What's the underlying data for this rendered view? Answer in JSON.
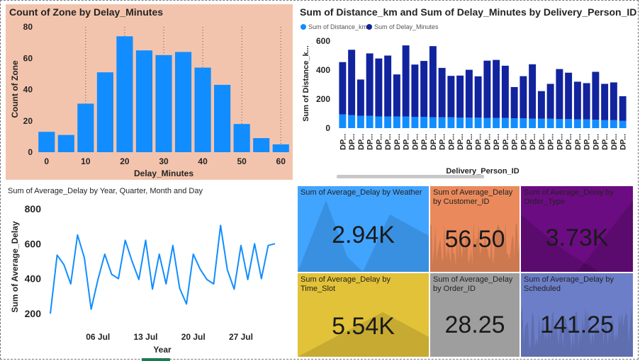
{
  "colors": {
    "hist_panel_bg": "#f3c4ad",
    "bar_blue": "#118dff",
    "dark_blue": "#12239e",
    "weather": "#41a4ff",
    "customer": "#ea8a5c",
    "order_type": "#6c0c82",
    "time_slot": "#e2c238",
    "order_id": "#9e9e9e",
    "scheduled": "#6c7ec8"
  },
  "hist": {
    "title": "Count of Zone by Delay_Minutes",
    "chart_data": {
      "type": "bar",
      "title": "Count of Zone by Delay_Minutes",
      "xlabel": "Delay_Minutes",
      "ylabel": "Count of Zone",
      "categories": [
        0,
        5,
        10,
        15,
        20,
        25,
        30,
        35,
        40,
        45,
        50,
        55,
        60
      ],
      "values": [
        13,
        11,
        31,
        51,
        74,
        65,
        62,
        64,
        54,
        43,
        18,
        9,
        5
      ],
      "ylim": [
        0,
        80
      ],
      "yticks": [
        0,
        20,
        40,
        60,
        80
      ],
      "xticks": [
        0,
        10,
        20,
        30,
        40,
        50,
        60
      ],
      "grid": "vertical dotted"
    }
  },
  "stacked": {
    "title": "Sum of Distance_km and Sum of Delay_Minutes by Delivery_Person_ID",
    "legend": [
      "Sum of Distance_km",
      "Sum of Delay_Minutes"
    ],
    "chart_data": {
      "type": "bar",
      "stacked": true,
      "title": "Sum of Distance_km and Sum of Delay_Minutes by Delivery_Person_ID",
      "xlabel": "Delivery_Person_ID",
      "ylabel": "Sum of Distance_k...",
      "category_label": "DP...",
      "ylim": [
        0,
        600
      ],
      "yticks": [
        0,
        200,
        400,
        600
      ],
      "legend": "top-left",
      "series": [
        {
          "name": "Sum of Distance_km",
          "values": [
            95,
            90,
            85,
            85,
            80,
            80,
            80,
            80,
            78,
            78,
            75,
            75,
            75,
            72,
            72,
            72,
            70,
            70,
            70,
            68,
            68,
            65,
            65,
            65,
            62,
            62,
            60,
            60,
            58,
            55,
            55,
            50
          ]
        },
        {
          "name": "Sum of Delay_Minutes",
          "values": [
            360,
            450,
            250,
            430,
            400,
            420,
            290,
            490,
            360,
            385,
            490,
            340,
            285,
            290,
            330,
            285,
            395,
            400,
            360,
            215,
            290,
            375,
            190,
            240,
            345,
            320,
            260,
            250,
            330,
            250,
            260,
            170
          ]
        }
      ]
    }
  },
  "line": {
    "title": "Sum of Average_Delay by Year, Quarter, Month and Day",
    "chart_data": {
      "type": "line",
      "title": "Sum of Average_Delay by Year, Quarter, Month and Day",
      "xlabel": "Year",
      "ylabel": "Sum of Average_Delay",
      "ylim": [
        180,
        820
      ],
      "yticks": [
        200,
        400,
        600,
        800
      ],
      "xtick_labels": [
        "06 Jul",
        "13 Jul",
        "20 Jul",
        "27 Jul"
      ],
      "x": [
        "2023-06-29",
        "2023-06-30",
        "2023-07-01",
        "2023-07-02",
        "2023-07-03",
        "2023-07-04",
        "2023-07-05",
        "2023-07-06",
        "2023-07-07",
        "2023-07-08",
        "2023-07-09",
        "2023-07-10",
        "2023-07-11",
        "2023-07-12",
        "2023-07-13",
        "2023-07-14",
        "2023-07-15",
        "2023-07-16",
        "2023-07-17",
        "2023-07-18",
        "2023-07-19",
        "2023-07-20",
        "2023-07-21",
        "2023-07-22",
        "2023-07-23",
        "2023-07-24",
        "2023-07-25",
        "2023-07-26",
        "2023-07-27",
        "2023-07-28",
        "2023-07-29",
        "2023-07-30",
        "2023-07-31",
        "2023-08-01"
      ],
      "values": [
        200,
        535,
        480,
        370,
        650,
        520,
        225,
        395,
        540,
        425,
        400,
        620,
        500,
        395,
        620,
        340,
        540,
        370,
        590,
        345,
        255,
        540,
        455,
        395,
        370,
        705,
        450,
        340,
        590,
        395,
        600,
        400,
        590,
        600
      ]
    }
  },
  "kpis": [
    {
      "title": "Sum of Average_Delay by Weather",
      "value": "2.94K"
    },
    {
      "title": "Sum of Average_Delay by Customer_ID",
      "value": "56.50"
    },
    {
      "title": "Sum of Average_Delay by Order_Type",
      "value": "3.73K"
    },
    {
      "title": "Sum of Average_Delay by Time_Slot",
      "value": "5.54K"
    },
    {
      "title": "Sum of Average_Delay by Order_ID",
      "value": "28.25"
    },
    {
      "title": "Sum of Average_Delay by Scheduled",
      "value": "141.25"
    }
  ]
}
